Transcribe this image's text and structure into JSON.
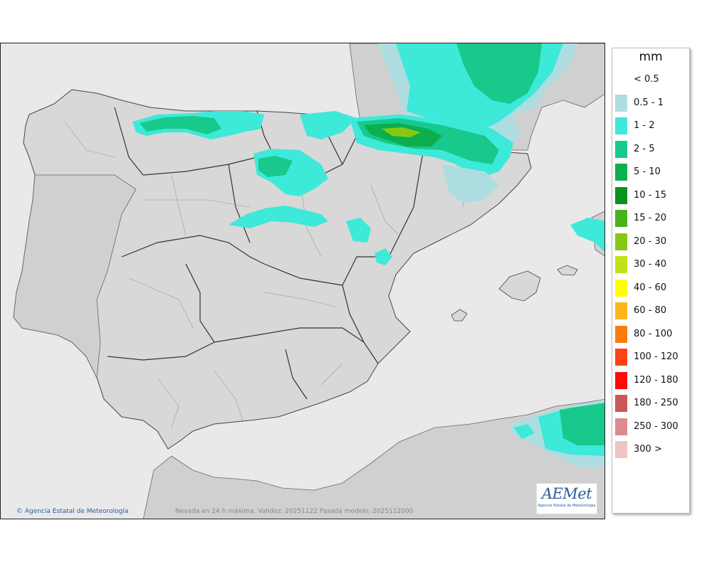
{
  "legend": {
    "unit": "mm",
    "items": [
      {
        "label": "< 0.5",
        "color": "#ffffff"
      },
      {
        "label": "0.5 - 1",
        "color": "#aedde1"
      },
      {
        "label": "1 - 2",
        "color": "#3de9d9"
      },
      {
        "label": "2 - 5",
        "color": "#17c98a"
      },
      {
        "label": "5 - 10",
        "color": "#0cae4e"
      },
      {
        "label": "10 - 15",
        "color": "#0a941c"
      },
      {
        "label": "15 - 20",
        "color": "#4ab21c"
      },
      {
        "label": "20 - 30",
        "color": "#86c914"
      },
      {
        "label": "30 - 40",
        "color": "#c4e016"
      },
      {
        "label": "40 - 60",
        "color": "#ffff00"
      },
      {
        "label": "60 - 80",
        "color": "#fbb71a"
      },
      {
        "label": "80 - 100",
        "color": "#fb7c0d"
      },
      {
        "label": "100 - 120",
        "color": "#fd4216"
      },
      {
        "label": "120 - 180",
        "color": "#fd0a0a"
      },
      {
        "label": "180 - 250",
        "color": "#cc5656"
      },
      {
        "label": "250 - 300",
        "color": "#dc8c8c"
      },
      {
        "label": "300 >",
        "color": "#eec4c4"
      }
    ]
  },
  "map": {
    "caption": "Nevada en 24 h máxima. Validez: 20251122 Pasada modelo: 2025112000",
    "copyright": "Agencia Estatal de Meteorología",
    "logo_text": "AEMet",
    "logo_subtitle": "Agencia Estatal de Meteorología",
    "colors": {
      "sea": "#e9e9e9",
      "land": "#d8d8d8",
      "other_land": "#d0d0d0",
      "border": "#333333"
    }
  }
}
